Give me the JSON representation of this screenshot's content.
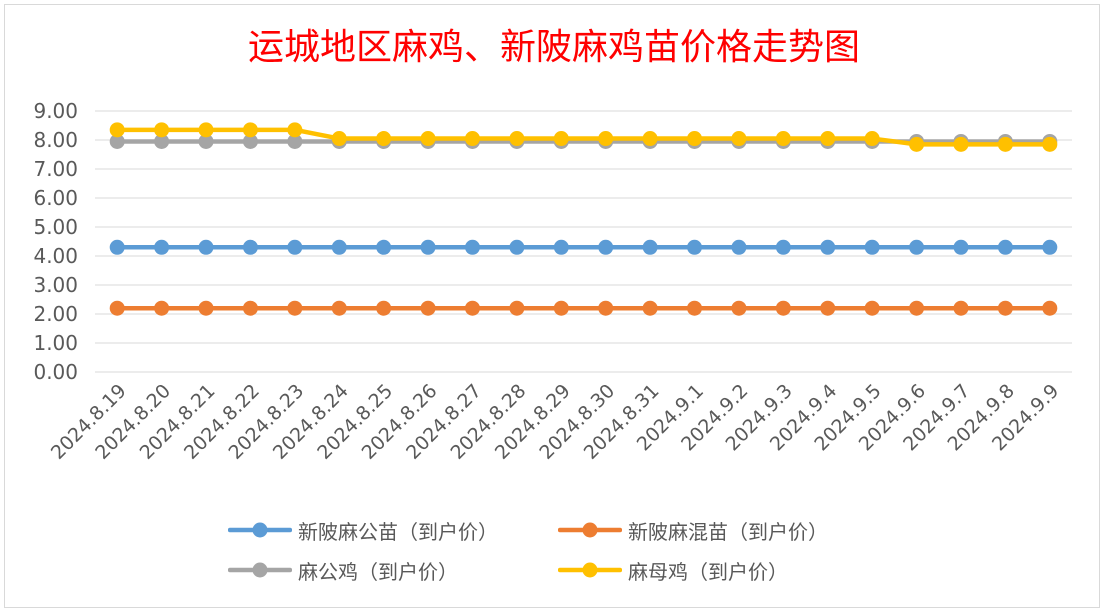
{
  "chart_data": {
    "type": "line",
    "title": "运城地区麻鸡、新陂麻鸡苗价格走势图",
    "xlabel": "",
    "ylabel": "",
    "ylim": [
      0,
      9
    ],
    "yticks": [
      "0.00",
      "1.00",
      "2.00",
      "3.00",
      "4.00",
      "5.00",
      "6.00",
      "7.00",
      "8.00",
      "9.00"
    ],
    "grid": true,
    "legend_position": "bottom",
    "categories": [
      "2024.8.19",
      "2024.8.20",
      "2024.8.21",
      "2024.8.22",
      "2024.8.23",
      "2024.8.24",
      "2024.8.25",
      "2024.8.26",
      "2024.8.27",
      "2024.8.28",
      "2024.8.29",
      "2024.8.30",
      "2024.8.31",
      "2024.9.1",
      "2024.9.2",
      "2024.9.3",
      "2024.9.4",
      "2024.9.5",
      "2024.9.6",
      "2024.9.7",
      "2024.9.8",
      "2024.9.9"
    ],
    "series": [
      {
        "name": "新陂麻公苗（到户价）",
        "color": "#5b9bd5",
        "values": [
          4.3,
          4.3,
          4.3,
          4.3,
          4.3,
          4.3,
          4.3,
          4.3,
          4.3,
          4.3,
          4.3,
          4.3,
          4.3,
          4.3,
          4.3,
          4.3,
          4.3,
          4.3,
          4.3,
          4.3,
          4.3,
          4.3
        ]
      },
      {
        "name": "新陂麻混苗（到户价）",
        "color": "#ed7d31",
        "values": [
          2.2,
          2.2,
          2.2,
          2.2,
          2.2,
          2.2,
          2.2,
          2.2,
          2.2,
          2.2,
          2.2,
          2.2,
          2.2,
          2.2,
          2.2,
          2.2,
          2.2,
          2.2,
          2.2,
          2.2,
          2.2,
          2.2
        ]
      },
      {
        "name": "麻公鸡（到户价）",
        "color": "#a5a5a5",
        "values": [
          7.95,
          7.95,
          7.95,
          7.95,
          7.95,
          7.95,
          7.95,
          7.95,
          7.95,
          7.95,
          7.95,
          7.95,
          7.95,
          7.95,
          7.95,
          7.95,
          7.95,
          7.95,
          7.95,
          7.95,
          7.95,
          7.95
        ]
      },
      {
        "name": "麻母鸡（到户价）",
        "color": "#ffc000",
        "values": [
          8.35,
          8.35,
          8.35,
          8.35,
          8.35,
          8.05,
          8.05,
          8.05,
          8.05,
          8.05,
          8.05,
          8.05,
          8.05,
          8.05,
          8.05,
          8.05,
          8.05,
          8.05,
          7.85,
          7.85,
          7.85,
          7.85
        ]
      }
    ]
  }
}
